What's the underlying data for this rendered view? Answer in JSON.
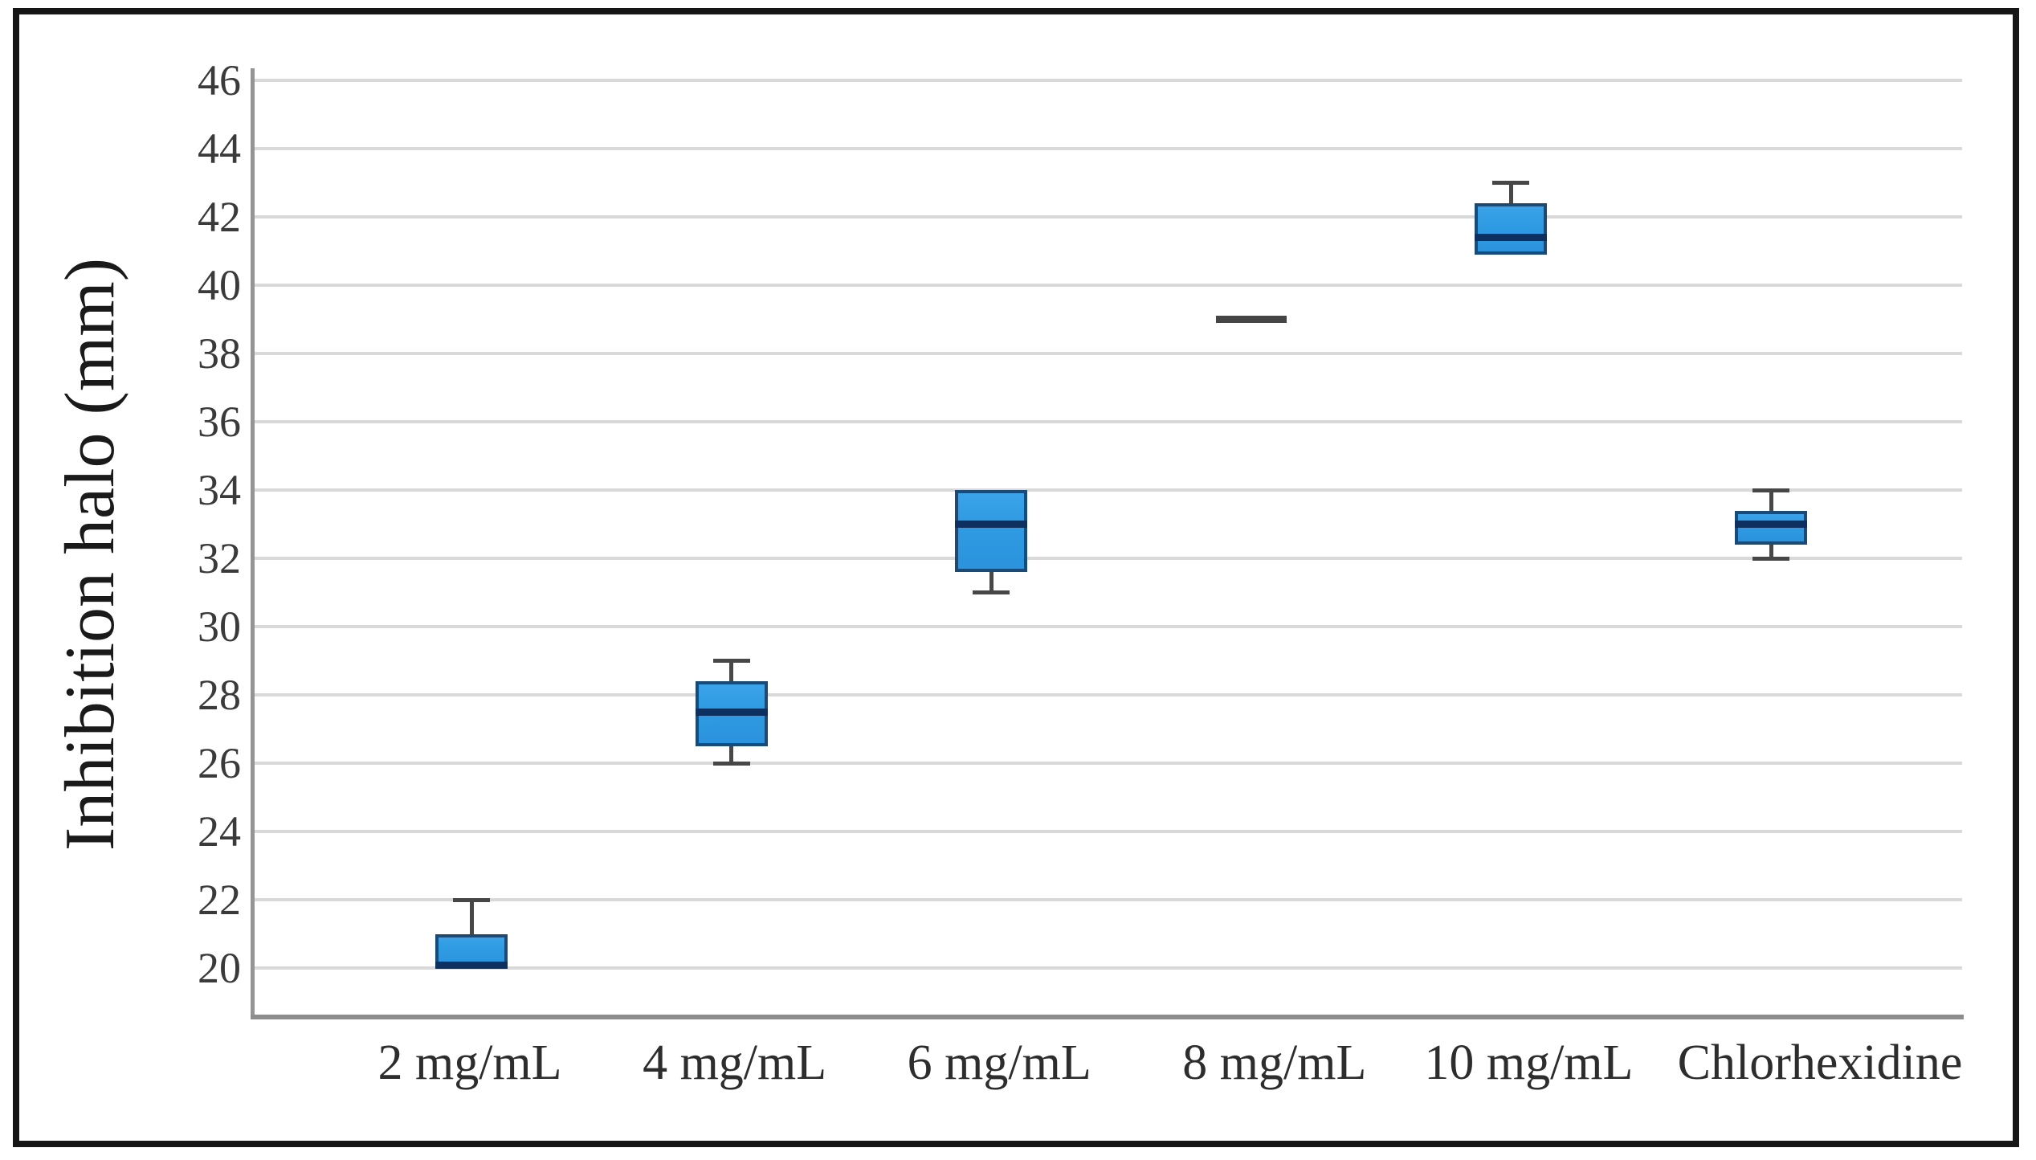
{
  "chart_data": {
    "type": "boxplot",
    "title": "",
    "xlabel": "",
    "ylabel": "Inhibition halo (mm)",
    "ylim": [
      18.55,
      46.36
    ],
    "y_ticks": [
      20,
      22,
      24,
      26,
      28,
      30,
      32,
      34,
      36,
      38,
      40,
      42,
      44,
      46
    ],
    "grid": "horizontal-light-gray",
    "legend": "none",
    "categories": [
      "2 mg/mL",
      "4 mg/mL",
      "6 mg/mL",
      "8 mg/mL",
      "10 mg/mL",
      "Chlorhexidine"
    ],
    "series": [
      {
        "label": "2 mg/mL",
        "min": 20,
        "q1": 20,
        "median": 20.1,
        "q3": 21,
        "max": 22
      },
      {
        "label": "4 mg/mL",
        "min": 26,
        "q1": 26.5,
        "median": 27.5,
        "q3": 28.4,
        "max": 29
      },
      {
        "label": "6 mg/mL",
        "min": 31,
        "q1": 31.6,
        "median": 33,
        "q3": 34,
        "max": 34
      },
      {
        "label": "8 mg/mL",
        "min": 39,
        "q1": 39,
        "median": 39,
        "q3": 39,
        "max": 39
      },
      {
        "label": "10 mg/mL",
        "min": 40.9,
        "q1": 40.9,
        "median": 41.4,
        "q3": 42.4,
        "max": 43
      },
      {
        "label": "Chlorhexidine",
        "min": 32,
        "q1": 32.4,
        "median": 33,
        "q3": 33.4,
        "max": 34
      }
    ],
    "colors": {
      "box_fill": "#2F9BE3",
      "box_border": "#1A4A78",
      "median": "#0D3060",
      "whisker": "#474747",
      "gridline": "#D9D9D9",
      "axis_line": "#949494",
      "tick_text": "#3A3A3A",
      "frame": "#161616"
    }
  }
}
